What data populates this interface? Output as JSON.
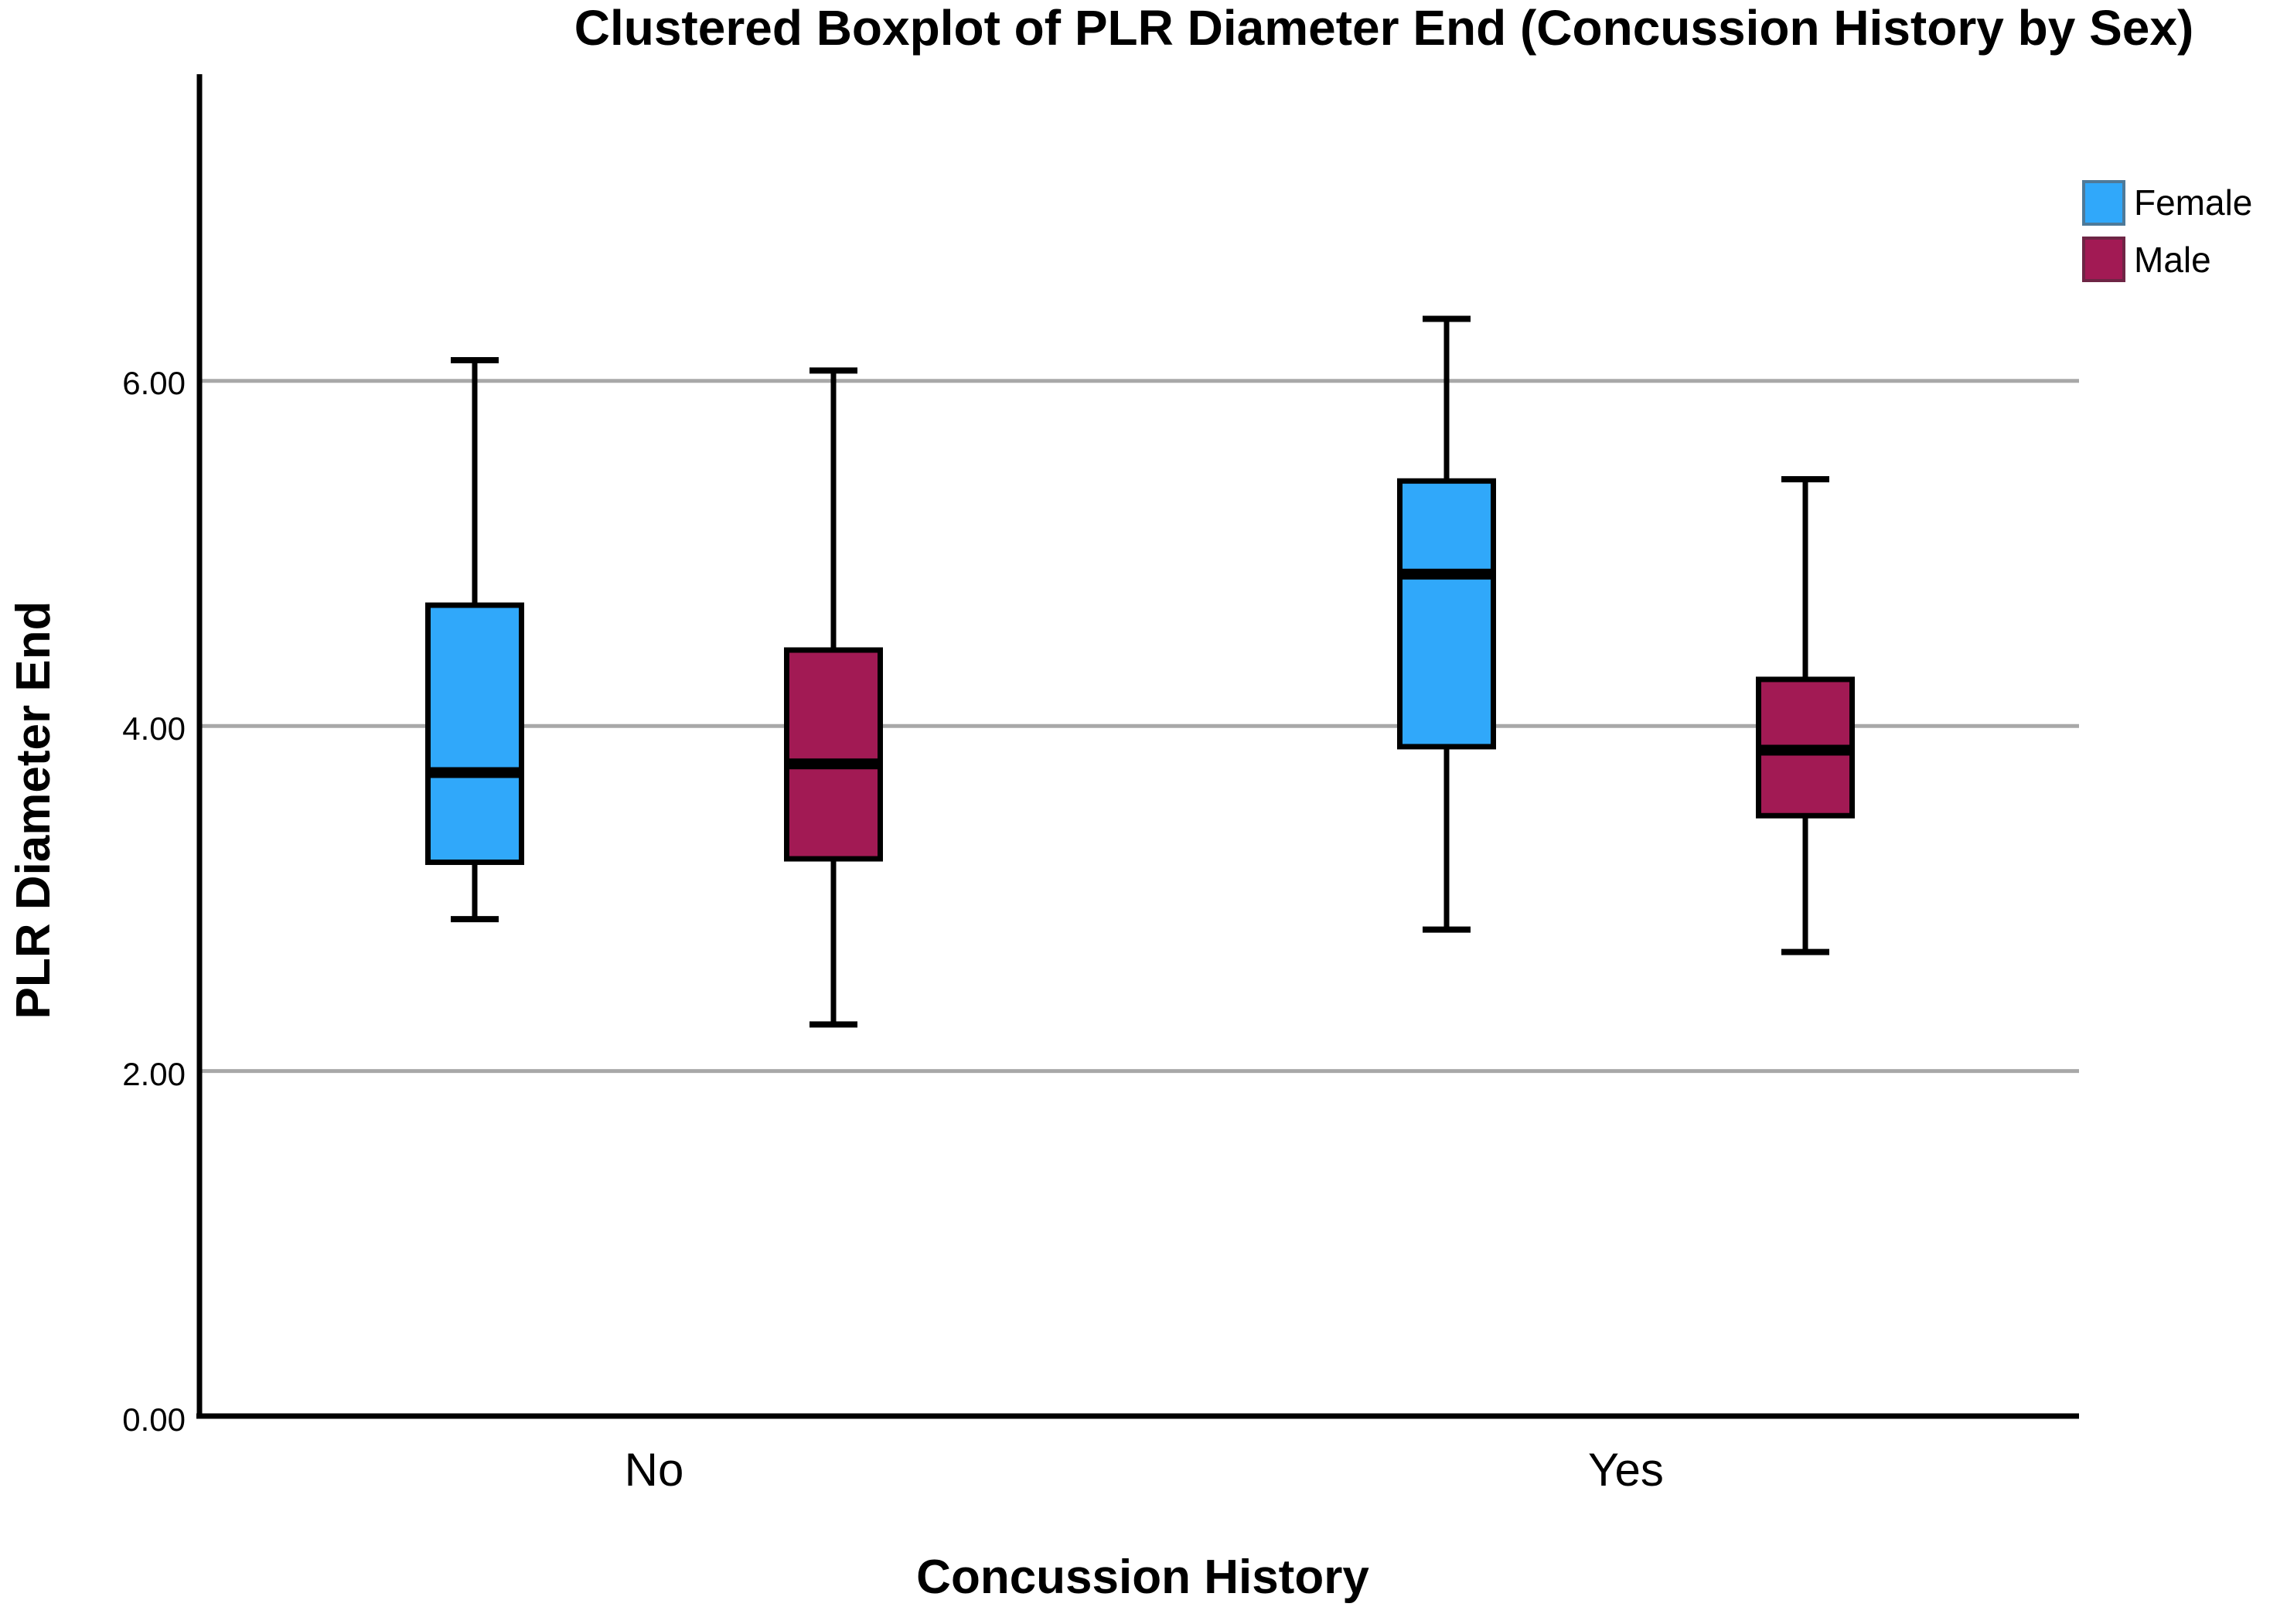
{
  "title": "Clustered Boxplot of PLR Diameter End (Concussion History by Sex)",
  "chart_data": {
    "type": "boxplot",
    "title": "Clustered Boxplot of PLR Diameter End (Concussion History by Sex)",
    "xlabel": "Concussion History",
    "ylabel": "PLR Diameter End",
    "categories": [
      "No",
      "Yes"
    ],
    "yticks": [
      "0.00",
      "2.00",
      "4.00",
      "6.00"
    ],
    "ylim": [
      0,
      7.8
    ],
    "grid": "horizontal-gray-gridlines-at-2-4-6",
    "legend_position": "top-right",
    "series": [
      {
        "name": "Female",
        "color": "#30A8FA",
        "boxes": [
          {
            "category": "No",
            "min": 2.88,
            "q1": 3.21,
            "median": 3.73,
            "q3": 4.7,
            "max": 6.12
          },
          {
            "category": "Yes",
            "min": 2.82,
            "q1": 3.88,
            "median": 4.88,
            "q3": 5.42,
            "max": 6.36
          }
        ]
      },
      {
        "name": "Male",
        "color": "#A21A54",
        "boxes": [
          {
            "category": "No",
            "min": 2.27,
            "q1": 3.23,
            "median": 3.78,
            "q3": 4.44,
            "max": 6.06
          },
          {
            "category": "Yes",
            "min": 2.69,
            "q1": 3.48,
            "median": 3.86,
            "q3": 4.27,
            "max": 5.43
          }
        ]
      }
    ]
  },
  "legend": {
    "items": [
      {
        "label": "Female",
        "color": "#30A8FA",
        "border": "#4E7A99"
      },
      {
        "label": "Male",
        "color": "#A21A54",
        "border": "#6E2545"
      }
    ]
  },
  "colors": {
    "gridline": "#A8A8A8",
    "axis": "#000000",
    "median_line": "#000000"
  }
}
